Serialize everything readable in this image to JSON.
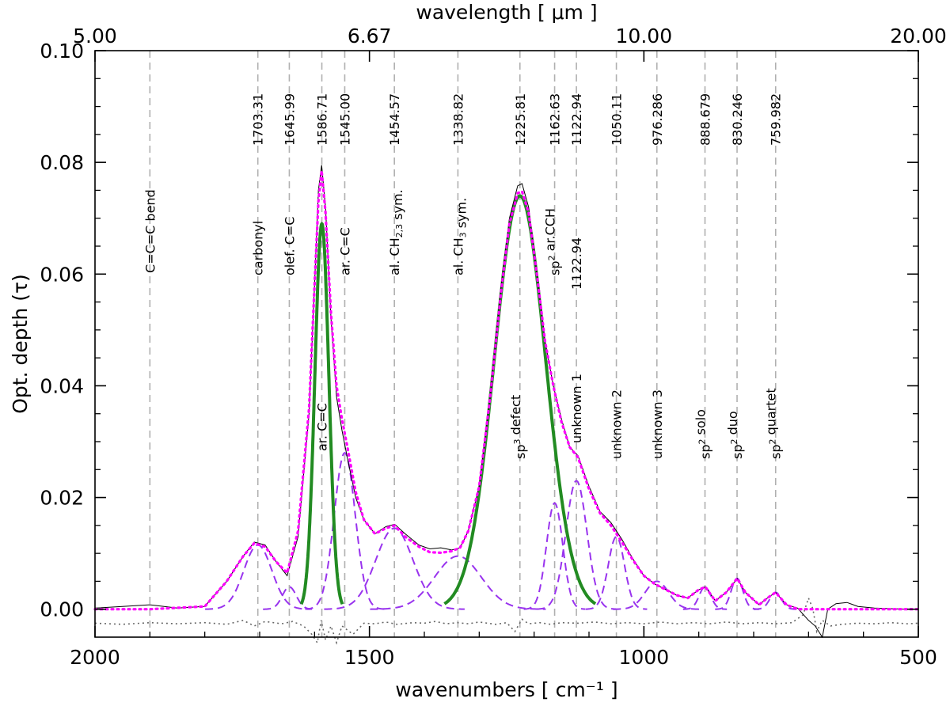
{
  "chart_data": {
    "type": "line",
    "x_axis": {
      "label": "wavenumbers [ cm⁻¹ ]",
      "range": [
        2000,
        500
      ],
      "ticks": [
        2000,
        1500,
        1000,
        500
      ],
      "tick_labels": [
        "2000",
        "1500",
        "1000",
        "500"
      ]
    },
    "x_top_axis": {
      "label": "wavelength [ μm ]",
      "tick_wavenumbers": [
        2000,
        1500,
        1000,
        500
      ],
      "tick_labels": [
        "5.00",
        "6.67",
        "10.00",
        "20.00"
      ]
    },
    "y_axis": {
      "label": "Opt. depth (τ)",
      "range": [
        -0.005,
        0.1
      ],
      "ticks": [
        0.0,
        0.02,
        0.04,
        0.06,
        0.08,
        0.1
      ],
      "tick_labels": [
        "0.00",
        "0.02",
        "0.04",
        "0.06",
        "0.08",
        "0.10"
      ]
    },
    "band_positions": [
      {
        "x": 1900,
        "position_label": "",
        "band_label": "C=C=C bend"
      },
      {
        "x": 1703.31,
        "position_label": "1703.31",
        "band_label": "carbonyl"
      },
      {
        "x": 1645.99,
        "position_label": "1645.99",
        "band_label": "olef. C=C"
      },
      {
        "x": 1586.71,
        "position_label": "1586.71",
        "band_label": "ar. C=C"
      },
      {
        "x": 1545.0,
        "position_label": "1545.00",
        "band_label": "ar. C=C"
      },
      {
        "x": 1454.57,
        "position_label": "1454.57",
        "band_label": "al. CH2,3 sym."
      },
      {
        "x": 1338.82,
        "position_label": "1338.82",
        "band_label": "al. CH3 sym."
      },
      {
        "x": 1225.81,
        "position_label": "1225.81",
        "band_label": "sp3 defect"
      },
      {
        "x": 1162.63,
        "position_label": "1162.63",
        "band_label": "sp2 ar.CCH"
      },
      {
        "x": 1122.94,
        "position_label": "1122.94",
        "band_label": "unknown 1"
      },
      {
        "x": 1050.11,
        "position_label": "1050.11",
        "band_label": "unknown 2"
      },
      {
        "x": 976.286,
        "position_label": "976.286",
        "band_label": "unknown 3"
      },
      {
        "x": 888.679,
        "position_label": "888.679",
        "band_label": "sp2 solo"
      },
      {
        "x": 830.246,
        "position_label": "830.246",
        "band_label": "sp2 duo"
      },
      {
        "x": 759.982,
        "position_label": "759.982",
        "band_label": "sp2 quartet"
      }
    ],
    "gaussian_components": [
      {
        "center": 1703.31,
        "amplitude": 0.0115,
        "fwhm": 60,
        "style": "dashed",
        "color": "#9933ee"
      },
      {
        "center": 1645.99,
        "amplitude": 0.004,
        "fwhm": 30,
        "style": "dashed",
        "color": "#9933ee"
      },
      {
        "center": 1545.0,
        "amplitude": 0.028,
        "fwhm": 45,
        "style": "dashed",
        "color": "#9933ee"
      },
      {
        "center": 1454.57,
        "amplitude": 0.0145,
        "fwhm": 80,
        "style": "dashed",
        "color": "#9933ee"
      },
      {
        "center": 1338.82,
        "amplitude": 0.0095,
        "fwhm": 100,
        "style": "dashed",
        "color": "#9933ee"
      },
      {
        "center": 1162.63,
        "amplitude": 0.019,
        "fwhm": 35,
        "style": "dashed",
        "color": "#9933ee"
      },
      {
        "center": 1122.94,
        "amplitude": 0.023,
        "fwhm": 45,
        "style": "dashed",
        "color": "#9933ee"
      },
      {
        "center": 1050.11,
        "amplitude": 0.013,
        "fwhm": 35,
        "style": "dashed",
        "color": "#9933ee"
      },
      {
        "center": 976.286,
        "amplitude": 0.005,
        "fwhm": 50,
        "style": "dashed",
        "color": "#9933ee"
      },
      {
        "center": 888.679,
        "amplitude": 0.004,
        "fwhm": 25,
        "style": "dashed",
        "color": "#9933ee"
      },
      {
        "center": 830.246,
        "amplitude": 0.0055,
        "fwhm": 25,
        "style": "dashed",
        "color": "#9933ee"
      },
      {
        "center": 759.982,
        "amplitude": 0.003,
        "fwhm": 25,
        "style": "dashed",
        "color": "#9933ee"
      }
    ],
    "highlighted_components": [
      {
        "center": 1586.71,
        "amplitude": 0.069,
        "fwhm": 30,
        "color": "#228b22"
      },
      {
        "center": 1225.81,
        "amplitude": 0.074,
        "fwhm": 110,
        "color": "#228b22"
      }
    ],
    "observed_spectrum": {
      "color": "#000000",
      "points": [
        [
          2000,
          0.0002
        ],
        [
          1950,
          0.0005
        ],
        [
          1900,
          0.0008
        ],
        [
          1850,
          0.0002
        ],
        [
          1800,
          0.0005
        ],
        [
          1760,
          0.005
        ],
        [
          1730,
          0.0095
        ],
        [
          1710,
          0.012
        ],
        [
          1690,
          0.0115
        ],
        [
          1670,
          0.0085
        ],
        [
          1650,
          0.006
        ],
        [
          1630,
          0.013
        ],
        [
          1610,
          0.035
        ],
        [
          1600,
          0.058
        ],
        [
          1593,
          0.075
        ],
        [
          1587,
          0.0795
        ],
        [
          1580,
          0.072
        ],
        [
          1570,
          0.052
        ],
        [
          1560,
          0.038
        ],
        [
          1550,
          0.032
        ],
        [
          1540,
          0.027
        ],
        [
          1525,
          0.02
        ],
        [
          1510,
          0.016
        ],
        [
          1490,
          0.0135
        ],
        [
          1470,
          0.0148
        ],
        [
          1454,
          0.0152
        ],
        [
          1435,
          0.0135
        ],
        [
          1410,
          0.0115
        ],
        [
          1390,
          0.0108
        ],
        [
          1370,
          0.011
        ],
        [
          1350,
          0.0106
        ],
        [
          1335,
          0.011
        ],
        [
          1320,
          0.014
        ],
        [
          1300,
          0.022
        ],
        [
          1280,
          0.038
        ],
        [
          1260,
          0.058
        ],
        [
          1245,
          0.07
        ],
        [
          1230,
          0.0758
        ],
        [
          1222,
          0.0762
        ],
        [
          1210,
          0.072
        ],
        [
          1195,
          0.06
        ],
        [
          1180,
          0.048
        ],
        [
          1165,
          0.04
        ],
        [
          1150,
          0.034
        ],
        [
          1135,
          0.029
        ],
        [
          1120,
          0.0275
        ],
        [
          1100,
          0.022
        ],
        [
          1080,
          0.0175
        ],
        [
          1060,
          0.0155
        ],
        [
          1040,
          0.0125
        ],
        [
          1020,
          0.009
        ],
        [
          1000,
          0.006
        ],
        [
          980,
          0.0045
        ],
        [
          960,
          0.0035
        ],
        [
          940,
          0.0025
        ],
        [
          920,
          0.002
        ],
        [
          900,
          0.0035
        ],
        [
          888,
          0.004
        ],
        [
          870,
          0.0015
        ],
        [
          850,
          0.003
        ],
        [
          830,
          0.0055
        ],
        [
          815,
          0.003
        ],
        [
          790,
          0.0008
        ],
        [
          775,
          0.002
        ],
        [
          760,
          0.003
        ],
        [
          740,
          0.0008
        ],
        [
          720,
          0.0002
        ],
        [
          700,
          -0.002
        ],
        [
          688,
          -0.003
        ],
        [
          675,
          -0.005
        ],
        [
          665,
          0.0
        ],
        [
          650,
          0.001
        ],
        [
          630,
          0.0012
        ],
        [
          610,
          0.0005
        ],
        [
          580,
          0.0002
        ],
        [
          550,
          0.0001
        ],
        [
          520,
          0.0
        ],
        [
          500,
          0.0
        ]
      ]
    },
    "total_fit": {
      "color": "#ff00ff",
      "style": "dotted",
      "points": [
        [
          2000,
          0.0
        ],
        [
          1900,
          0.0
        ],
        [
          1800,
          0.0005
        ],
        [
          1760,
          0.005
        ],
        [
          1730,
          0.0095
        ],
        [
          1710,
          0.0118
        ],
        [
          1690,
          0.0112
        ],
        [
          1670,
          0.0085
        ],
        [
          1650,
          0.0065
        ],
        [
          1630,
          0.014
        ],
        [
          1610,
          0.036
        ],
        [
          1600,
          0.058
        ],
        [
          1593,
          0.073
        ],
        [
          1587,
          0.0785
        ],
        [
          1580,
          0.071
        ],
        [
          1570,
          0.053
        ],
        [
          1560,
          0.04
        ],
        [
          1550,
          0.034
        ],
        [
          1540,
          0.029
        ],
        [
          1525,
          0.021
        ],
        [
          1510,
          0.016
        ],
        [
          1490,
          0.0135
        ],
        [
          1470,
          0.0145
        ],
        [
          1454,
          0.015
        ],
        [
          1435,
          0.013
        ],
        [
          1410,
          0.0112
        ],
        [
          1390,
          0.0102
        ],
        [
          1370,
          0.0101
        ],
        [
          1350,
          0.0104
        ],
        [
          1335,
          0.011
        ],
        [
          1320,
          0.014
        ],
        [
          1300,
          0.022
        ],
        [
          1280,
          0.038
        ],
        [
          1260,
          0.057
        ],
        [
          1245,
          0.069
        ],
        [
          1230,
          0.0745
        ],
        [
          1222,
          0.0748
        ],
        [
          1210,
          0.071
        ],
        [
          1195,
          0.06
        ],
        [
          1180,
          0.048
        ],
        [
          1165,
          0.04
        ],
        [
          1150,
          0.0335
        ],
        [
          1135,
          0.029
        ],
        [
          1120,
          0.0272
        ],
        [
          1100,
          0.0215
        ],
        [
          1080,
          0.0172
        ],
        [
          1060,
          0.015
        ],
        [
          1040,
          0.012
        ],
        [
          1020,
          0.0088
        ],
        [
          1000,
          0.006
        ],
        [
          980,
          0.0045
        ],
        [
          960,
          0.0035
        ],
        [
          940,
          0.0025
        ],
        [
          920,
          0.002
        ],
        [
          900,
          0.0035
        ],
        [
          888,
          0.004
        ],
        [
          870,
          0.0015
        ],
        [
          850,
          0.003
        ],
        [
          830,
          0.0055
        ],
        [
          815,
          0.003
        ],
        [
          790,
          0.0008
        ],
        [
          775,
          0.002
        ],
        [
          760,
          0.003
        ],
        [
          740,
          0.0008
        ],
        [
          720,
          0.0
        ],
        [
          650,
          0.0
        ],
        [
          500,
          0.0
        ]
      ]
    },
    "residual": {
      "color": "#666666",
      "style": "dotted",
      "points": [
        [
          2000,
          -0.0025
        ],
        [
          1950,
          -0.0027
        ],
        [
          1900,
          -0.0024
        ],
        [
          1850,
          -0.0026
        ],
        [
          1800,
          -0.0024
        ],
        [
          1760,
          -0.0027
        ],
        [
          1730,
          -0.002
        ],
        [
          1710,
          -0.003
        ],
        [
          1690,
          -0.0022
        ],
        [
          1660,
          -0.0026
        ],
        [
          1640,
          -0.0022
        ],
        [
          1620,
          -0.003
        ],
        [
          1605,
          -0.0045
        ],
        [
          1595,
          -0.006
        ],
        [
          1588,
          -0.002
        ],
        [
          1580,
          -0.0055
        ],
        [
          1570,
          -0.003
        ],
        [
          1560,
          -0.006
        ],
        [
          1550,
          -0.003
        ],
        [
          1530,
          -0.0045
        ],
        [
          1510,
          -0.0025
        ],
        [
          1490,
          -0.0026
        ],
        [
          1470,
          -0.0023
        ],
        [
          1450,
          -0.0027
        ],
        [
          1420,
          -0.0024
        ],
        [
          1400,
          -0.0025
        ],
        [
          1380,
          -0.0022
        ],
        [
          1360,
          -0.0026
        ],
        [
          1340,
          -0.0024
        ],
        [
          1320,
          -0.0026
        ],
        [
          1300,
          -0.0023
        ],
        [
          1270,
          -0.0027
        ],
        [
          1250,
          -0.0024
        ],
        [
          1235,
          -0.004
        ],
        [
          1222,
          -0.0018
        ],
        [
          1210,
          -0.0026
        ],
        [
          1190,
          -0.0024
        ],
        [
          1170,
          -0.0027
        ],
        [
          1150,
          -0.0024
        ],
        [
          1120,
          -0.0025
        ],
        [
          1090,
          -0.0023
        ],
        [
          1060,
          -0.0026
        ],
        [
          1030,
          -0.0024
        ],
        [
          1000,
          -0.0026
        ],
        [
          970,
          -0.0023
        ],
        [
          940,
          -0.0026
        ],
        [
          910,
          -0.0024
        ],
        [
          880,
          -0.0026
        ],
        [
          850,
          -0.0023
        ],
        [
          820,
          -0.0026
        ],
        [
          790,
          -0.0024
        ],
        [
          760,
          -0.0026
        ],
        [
          730,
          -0.0024
        ],
        [
          710,
          -0.001
        ],
        [
          700,
          0.002
        ],
        [
          692,
          0.0
        ],
        [
          685,
          -0.004
        ],
        [
          675,
          -0.002
        ],
        [
          660,
          -0.003
        ],
        [
          640,
          -0.0027
        ],
        [
          610,
          -0.0025
        ],
        [
          580,
          -0.0026
        ],
        [
          550,
          -0.0024
        ],
        [
          520,
          -0.0026
        ],
        [
          500,
          -0.0025
        ]
      ]
    }
  }
}
